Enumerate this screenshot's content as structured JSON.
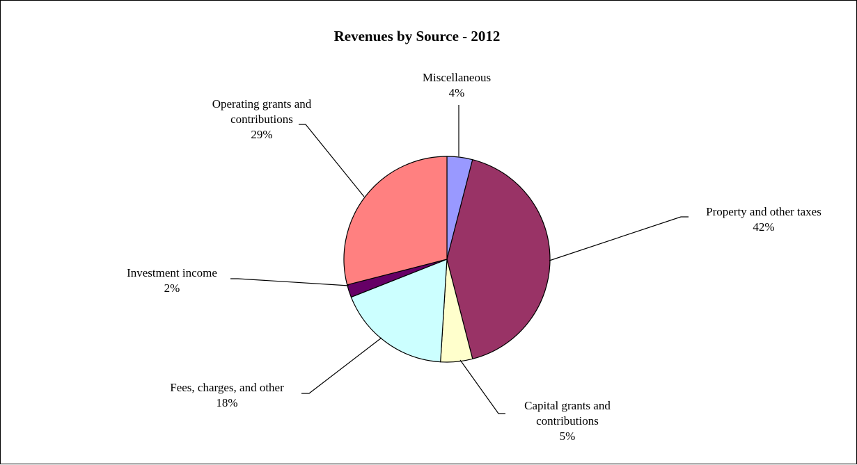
{
  "chart_data": {
    "type": "pie",
    "title": "Revenues by Source - 2012",
    "legend": "none",
    "slices": [
      {
        "label_lines": [
          "Miscellaneous"
        ],
        "percent_label": "4%",
        "value": 4,
        "color": "#9999FF"
      },
      {
        "label_lines": [
          "Property and other taxes"
        ],
        "percent_label": "42%",
        "value": 42,
        "color": "#993366"
      },
      {
        "label_lines": [
          "Capital grants and",
          "contributions"
        ],
        "percent_label": "5%",
        "value": 5,
        "color": "#FFFFCC"
      },
      {
        "label_lines": [
          "Fees, charges, and other"
        ],
        "percent_label": "18%",
        "value": 18,
        "color": "#CCFFFF"
      },
      {
        "label_lines": [
          "Investment income"
        ],
        "percent_label": "2%",
        "value": 2,
        "color": "#660066"
      },
      {
        "label_lines": [
          "Operating grants and",
          "contributions"
        ],
        "percent_label": "29%",
        "value": 29,
        "color": "#FF8080"
      }
    ]
  }
}
